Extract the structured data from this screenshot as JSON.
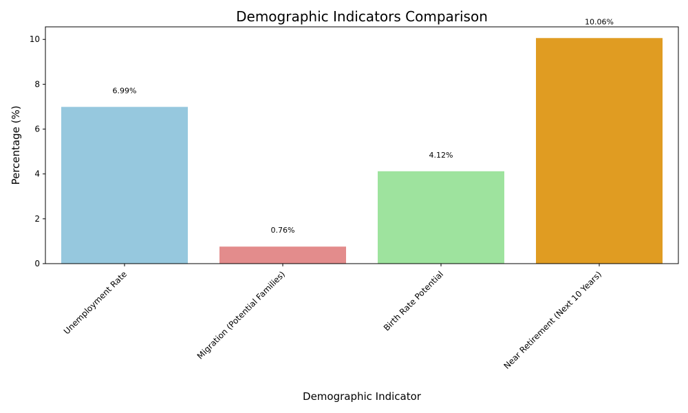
{
  "chart_data": {
    "type": "bar",
    "title": "Demographic Indicators Comparison",
    "xlabel": "Demographic Indicator",
    "ylabel": "Percentage (%)",
    "categories": [
      "Unemployment Rate",
      "Migration (Potential Families)",
      "Birth Rate Potential",
      "Near Retirement (Next 10 Years)"
    ],
    "values": [
      6.99,
      0.76,
      4.12,
      10.06
    ],
    "data_labels": [
      "6.99%",
      "0.76%",
      "4.12%",
      "10.06%"
    ],
    "colors": [
      "#96c8de",
      "#e38c8c",
      "#9ee39e",
      "#e09c22"
    ],
    "ylim": [
      0,
      10.56
    ],
    "yticks": [
      0,
      2,
      4,
      6,
      8,
      10
    ],
    "grid": false,
    "legend": "none"
  }
}
